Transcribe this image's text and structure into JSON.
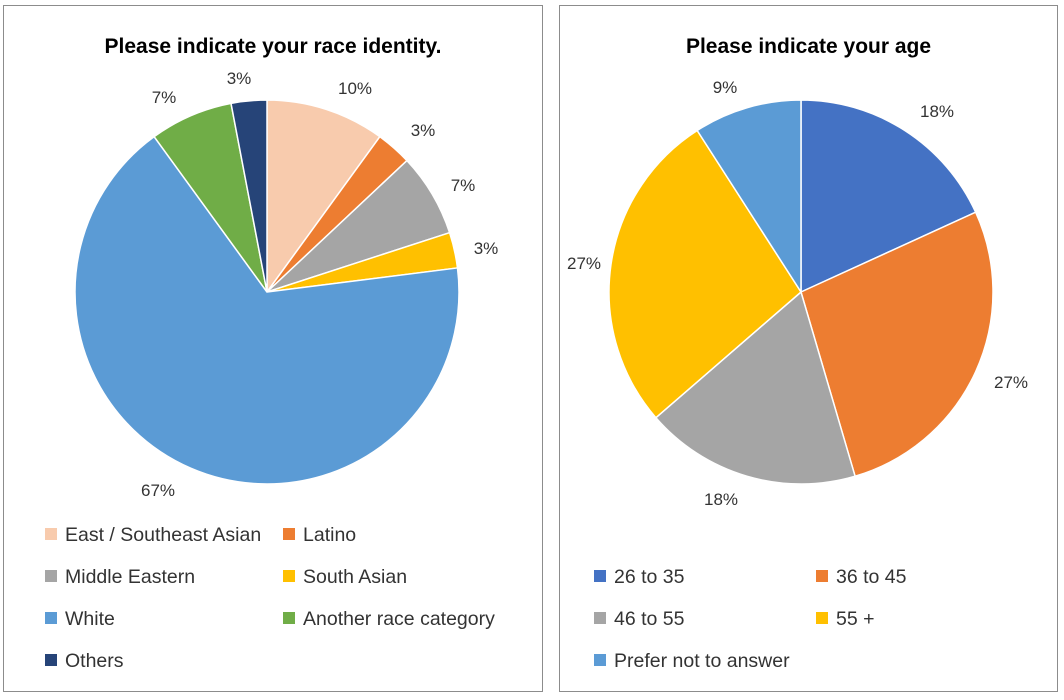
{
  "chart_data": [
    {
      "type": "pie",
      "title": "Please indicate your race identity.",
      "categories": [
        "East / Southeast Asian",
        "Latino",
        "Middle Eastern",
        "South Asian",
        "White",
        "Another race category",
        "Others"
      ],
      "values": [
        10,
        3,
        7,
        3,
        67,
        7,
        3
      ],
      "labels": [
        "10%",
        "3%",
        "7%",
        "3%",
        "67%",
        "7%",
        "3%"
      ],
      "colors": [
        "#F8CBAD",
        "#ED7D31",
        "#A5A5A5",
        "#FFC000",
        "#5B9BD5",
        "#70AD47",
        "#264478"
      ],
      "legend": "bottom"
    },
    {
      "type": "pie",
      "title": "Please indicate your age",
      "categories": [
        "26 to 35",
        "36 to 45",
        "46 to 55",
        "55 +",
        "Prefer not to answer"
      ],
      "values": [
        18,
        27,
        18,
        27,
        9
      ],
      "labels": [
        "18%",
        "27%",
        "18%",
        "27%",
        "9%"
      ],
      "colors": [
        "#4472C4",
        "#ED7D31",
        "#A5A5A5",
        "#FFC000",
        "#5B9BD5"
      ],
      "legend": "bottom"
    }
  ]
}
